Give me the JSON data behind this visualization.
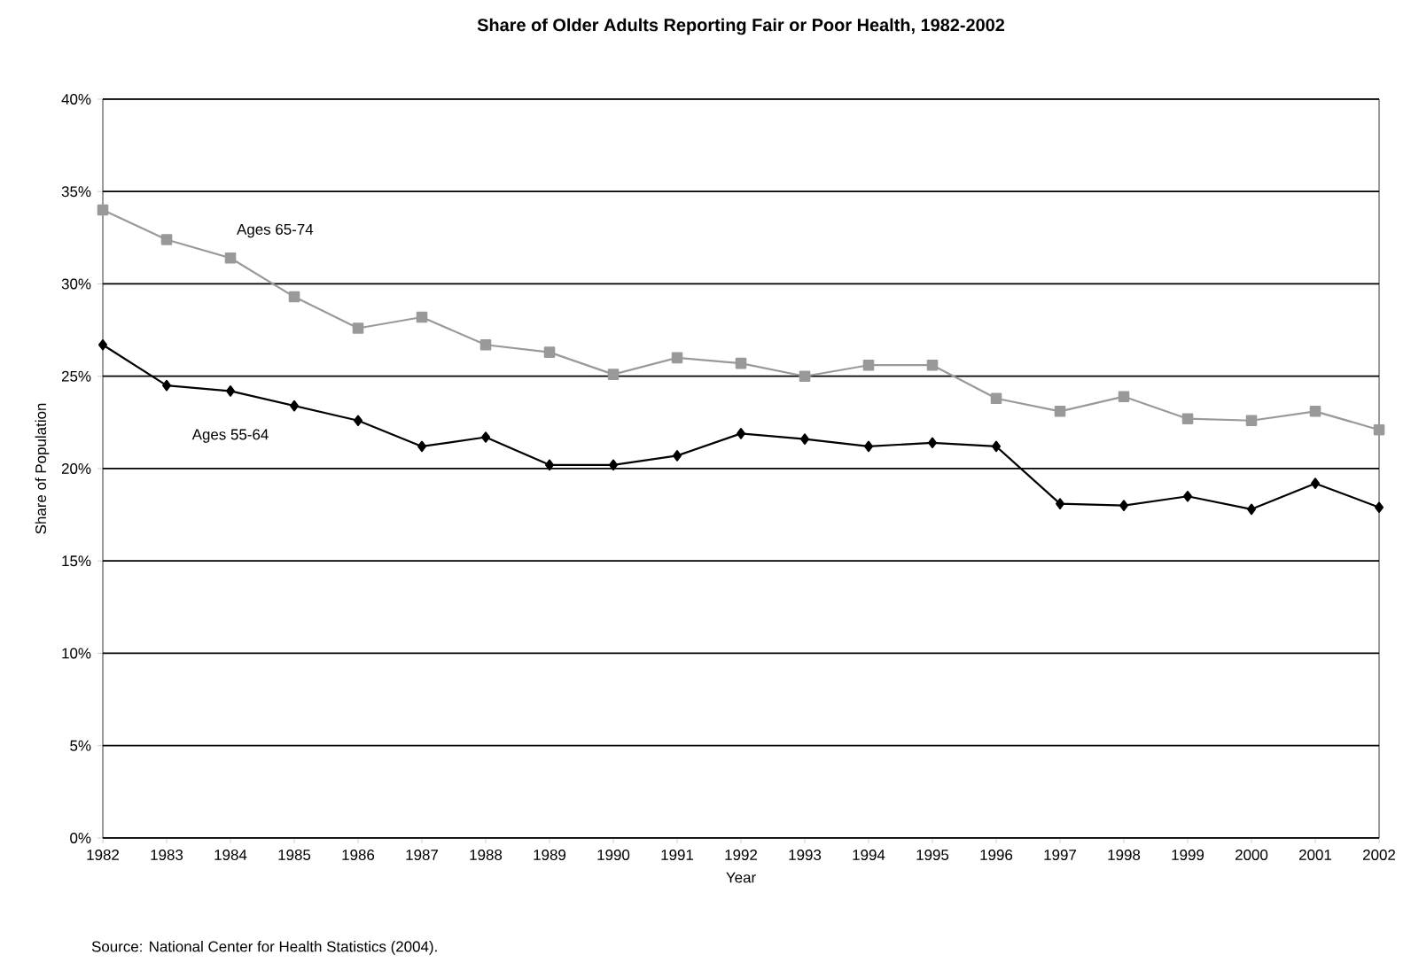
{
  "chart_data": {
    "type": "line",
    "title": "Share of Older Adults Reporting Fair or Poor Health, 1982-2002",
    "xlabel": "Year",
    "ylabel": "Share of Population",
    "x": [
      1982,
      1983,
      1984,
      1985,
      1986,
      1987,
      1988,
      1989,
      1990,
      1991,
      1992,
      1993,
      1994,
      1995,
      1996,
      1997,
      1998,
      1999,
      2000,
      2001,
      2002
    ],
    "series": [
      {
        "name": "Ages 65-74",
        "color": "#999999",
        "marker": "square",
        "values": [
          34.0,
          32.4,
          31.4,
          29.3,
          27.6,
          28.2,
          26.7,
          26.3,
          25.1,
          26.0,
          25.7,
          25.0,
          25.6,
          25.6,
          23.8,
          23.1,
          23.9,
          22.7,
          22.6,
          23.1,
          22.1
        ]
      },
      {
        "name": "Ages 55-64",
        "color": "#000000",
        "marker": "diamond",
        "values": [
          26.7,
          24.5,
          24.2,
          23.4,
          22.6,
          21.2,
          21.7,
          20.2,
          20.2,
          20.7,
          21.9,
          21.6,
          21.2,
          21.4,
          21.2,
          18.1,
          18.0,
          18.5,
          17.8,
          19.2,
          17.9
        ]
      }
    ],
    "xlim": [
      1982,
      2002
    ],
    "xticks": [
      1982,
      1983,
      1984,
      1985,
      1986,
      1987,
      1988,
      1989,
      1990,
      1991,
      1992,
      1993,
      1994,
      1995,
      1996,
      1997,
      1998,
      1999,
      2000,
      2001,
      2002
    ],
    "ylim": [
      0,
      40
    ],
    "yticks": [
      {
        "value": 0,
        "label": "0%"
      },
      {
        "value": 5,
        "label": "5%"
      },
      {
        "value": 10,
        "label": "10%"
      },
      {
        "value": 15,
        "label": "15%"
      },
      {
        "value": 20,
        "label": "20%"
      },
      {
        "value": 25,
        "label": "25%"
      },
      {
        "value": 30,
        "label": "30%"
      },
      {
        "value": 35,
        "label": "35%"
      },
      {
        "value": 40,
        "label": "40%"
      }
    ],
    "grid": "y",
    "legend": false,
    "line_style": "solid",
    "annotations": [
      "Source:  National Center for Health Statistics (2004)."
    ]
  }
}
